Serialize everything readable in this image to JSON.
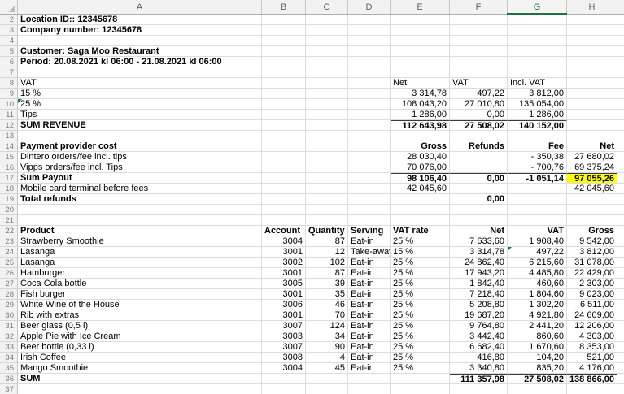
{
  "grid": {
    "column_headers": [
      "A",
      "B",
      "C",
      "D",
      "E",
      "F",
      "G",
      "H"
    ],
    "column_widths": {
      "A": 300,
      "B": 54,
      "C": 52,
      "D": 52,
      "E": 73,
      "F": 71,
      "G": 73,
      "H": 62
    },
    "selected_column": "G",
    "accent_green": "#1e7145",
    "highlight_yellow": "#ffff00",
    "rows": [
      {
        "n": 2,
        "cells": [
          {
            "c": "A",
            "t": "Location ID:: 12345678",
            "b": 1
          }
        ]
      },
      {
        "n": 3,
        "cells": [
          {
            "c": "A",
            "t": "Company number: 12345678",
            "b": 1
          }
        ]
      },
      {
        "n": 4,
        "cells": []
      },
      {
        "n": 5,
        "cells": [
          {
            "c": "A",
            "t": "Customer: Saga Moo Restaurant",
            "b": 1
          }
        ]
      },
      {
        "n": 6,
        "cells": [
          {
            "c": "A",
            "t": "Period: 20.08.2021 kl 06:00 - 21.08.2021 kl 06:00",
            "b": 1
          }
        ]
      },
      {
        "n": 7,
        "cells": []
      },
      {
        "n": 8,
        "cells": [
          {
            "c": "A",
            "t": "VAT"
          },
          {
            "c": "E",
            "t": "Net"
          },
          {
            "c": "F",
            "t": "VAT"
          },
          {
            "c": "G",
            "t": "Incl. VAT"
          }
        ]
      },
      {
        "n": 9,
        "cells": [
          {
            "c": "A",
            "t": "15 %"
          },
          {
            "c": "E",
            "t": "3 314,78",
            "r": 1
          },
          {
            "c": "F",
            "t": "497,22",
            "r": 1
          },
          {
            "c": "G",
            "t": "3 812,00",
            "r": 1
          }
        ]
      },
      {
        "n": 10,
        "cells": [
          {
            "c": "A",
            "t": "25 %",
            "flag": 1
          },
          {
            "c": "E",
            "t": "108 043,20",
            "r": 1
          },
          {
            "c": "F",
            "t": "27 010,80",
            "r": 1
          },
          {
            "c": "G",
            "t": "135 054,00",
            "r": 1
          }
        ]
      },
      {
        "n": 11,
        "cells": [
          {
            "c": "A",
            "t": "Tips"
          },
          {
            "c": "E",
            "t": "1 286,00",
            "r": 1
          },
          {
            "c": "F",
            "t": "0,00",
            "r": 1
          },
          {
            "c": "G",
            "t": "1 286,00",
            "r": 1
          }
        ]
      },
      {
        "n": 12,
        "cells": [
          {
            "c": "A",
            "t": "SUM REVENUE",
            "b": 1
          },
          {
            "c": "E",
            "t": "112 643,98",
            "r": 1,
            "b": 1,
            "bt": 1
          },
          {
            "c": "F",
            "t": "27 508,02",
            "r": 1,
            "b": 1,
            "bt": 1
          },
          {
            "c": "G",
            "t": "140 152,00",
            "r": 1,
            "b": 1,
            "bt": 1
          }
        ]
      },
      {
        "n": 13,
        "cells": []
      },
      {
        "n": 14,
        "cells": [
          {
            "c": "A",
            "t": "Payment provider cost",
            "b": 1
          },
          {
            "c": "E",
            "t": "Gross",
            "r": 1,
            "b": 1
          },
          {
            "c": "F",
            "t": "Refunds",
            "r": 1,
            "b": 1
          },
          {
            "c": "G",
            "t": "Fee",
            "r": 1,
            "b": 1
          },
          {
            "c": "H",
            "t": "Net",
            "r": 1,
            "b": 1
          }
        ]
      },
      {
        "n": 15,
        "cells": [
          {
            "c": "A",
            "t": "Dintero orders/fee incl. tips"
          },
          {
            "c": "E",
            "t": "28 030,40",
            "r": 1
          },
          {
            "c": "G",
            "t": "- 350,38",
            "r": 1
          },
          {
            "c": "H",
            "t": "27 680,02",
            "r": 1
          }
        ]
      },
      {
        "n": 16,
        "cells": [
          {
            "c": "A",
            "t": "Vipps orders/fee incl. Tips"
          },
          {
            "c": "E",
            "t": "70 076,00",
            "r": 1
          },
          {
            "c": "G",
            "t": "- 700,76",
            "r": 1
          },
          {
            "c": "H",
            "t": "69 375,24",
            "r": 1
          }
        ]
      },
      {
        "n": 17,
        "cells": [
          {
            "c": "A",
            "t": "Sum Payout",
            "b": 1
          },
          {
            "c": "E",
            "t": "98 106,40",
            "r": 1,
            "b": 1,
            "bt": 1
          },
          {
            "c": "F",
            "t": "0,00",
            "r": 1,
            "b": 1,
            "bt": 1
          },
          {
            "c": "G",
            "t": "-1 051,14",
            "r": 1,
            "b": 1,
            "bt": 1
          },
          {
            "c": "H",
            "t": "97 055,26",
            "r": 1,
            "b": 1,
            "bt": 1,
            "hl": 1
          }
        ]
      },
      {
        "n": 18,
        "cells": [
          {
            "c": "A",
            "t": "Mobile card terminal before fees"
          },
          {
            "c": "E",
            "t": "42 045,60",
            "r": 1
          },
          {
            "c": "H",
            "t": "42 045,60",
            "r": 1
          }
        ]
      },
      {
        "n": 19,
        "cells": [
          {
            "c": "A",
            "t": "Total refunds",
            "b": 1
          },
          {
            "c": "F",
            "t": "0,00",
            "r": 1,
            "b": 1
          }
        ]
      },
      {
        "n": 20,
        "cells": []
      },
      {
        "n": 21,
        "cells": []
      },
      {
        "n": 22,
        "cells": [
          {
            "c": "A",
            "t": "Product",
            "b": 1
          },
          {
            "c": "B",
            "t": "Account",
            "b": 1
          },
          {
            "c": "C",
            "t": "Quantity",
            "b": 1
          },
          {
            "c": "D",
            "t": "Serving",
            "b": 1
          },
          {
            "c": "E",
            "t": "VAT rate",
            "b": 1
          },
          {
            "c": "F",
            "t": "Net",
            "r": 1,
            "b": 1
          },
          {
            "c": "G",
            "t": "VAT",
            "r": 1,
            "b": 1
          },
          {
            "c": "H",
            "t": "Gross",
            "r": 1,
            "b": 1
          }
        ]
      },
      {
        "n": 23,
        "cells": [
          {
            "c": "A",
            "t": "Strawberry Smoothie"
          },
          {
            "c": "B",
            "t": "3004",
            "r": 1
          },
          {
            "c": "C",
            "t": "87",
            "r": 1
          },
          {
            "c": "D",
            "t": "Eat-in"
          },
          {
            "c": "E",
            "t": "25 %"
          },
          {
            "c": "F",
            "t": "7 633,60",
            "r": 1
          },
          {
            "c": "G",
            "t": "1 908,40",
            "r": 1
          },
          {
            "c": "H",
            "t": "9 542,00",
            "r": 1
          }
        ]
      },
      {
        "n": 24,
        "cells": [
          {
            "c": "A",
            "t": "Lasanga"
          },
          {
            "c": "B",
            "t": "3001",
            "r": 1
          },
          {
            "c": "C",
            "t": "12",
            "r": 1
          },
          {
            "c": "D",
            "t": "Take-away"
          },
          {
            "c": "E",
            "t": "15 %"
          },
          {
            "c": "F",
            "t": "3 314,78",
            "r": 1
          },
          {
            "c": "G",
            "t": "497,22",
            "r": 1,
            "flag": 1
          },
          {
            "c": "H",
            "t": "3 812,00",
            "r": 1
          }
        ]
      },
      {
        "n": 25,
        "cells": [
          {
            "c": "A",
            "t": "Lasanga"
          },
          {
            "c": "B",
            "t": "3002",
            "r": 1
          },
          {
            "c": "C",
            "t": "102",
            "r": 1
          },
          {
            "c": "D",
            "t": "Eat-in"
          },
          {
            "c": "E",
            "t": "25 %"
          },
          {
            "c": "F",
            "t": "24 862,40",
            "r": 1
          },
          {
            "c": "G",
            "t": "6 215,60",
            "r": 1
          },
          {
            "c": "H",
            "t": "31 078,00",
            "r": 1
          }
        ]
      },
      {
        "n": 26,
        "cells": [
          {
            "c": "A",
            "t": "Hamburger"
          },
          {
            "c": "B",
            "t": "3001",
            "r": 1
          },
          {
            "c": "C",
            "t": "87",
            "r": 1
          },
          {
            "c": "D",
            "t": "Eat-in"
          },
          {
            "c": "E",
            "t": "25 %"
          },
          {
            "c": "F",
            "t": "17 943,20",
            "r": 1
          },
          {
            "c": "G",
            "t": "4 485,80",
            "r": 1
          },
          {
            "c": "H",
            "t": "22 429,00",
            "r": 1
          }
        ]
      },
      {
        "n": 27,
        "cells": [
          {
            "c": "A",
            "t": "Coca Cola bottle"
          },
          {
            "c": "B",
            "t": "3005",
            "r": 1
          },
          {
            "c": "C",
            "t": "39",
            "r": 1
          },
          {
            "c": "D",
            "t": "Eat-in"
          },
          {
            "c": "E",
            "t": "25 %"
          },
          {
            "c": "F",
            "t": "1 842,40",
            "r": 1
          },
          {
            "c": "G",
            "t": "460,60",
            "r": 1
          },
          {
            "c": "H",
            "t": "2 303,00",
            "r": 1
          }
        ]
      },
      {
        "n": 28,
        "cells": [
          {
            "c": "A",
            "t": "Fish burger"
          },
          {
            "c": "B",
            "t": "3001",
            "r": 1
          },
          {
            "c": "C",
            "t": "35",
            "r": 1
          },
          {
            "c": "D",
            "t": "Eat-in"
          },
          {
            "c": "E",
            "t": "25 %"
          },
          {
            "c": "F",
            "t": "7 218,40",
            "r": 1
          },
          {
            "c": "G",
            "t": "1 804,60",
            "r": 1
          },
          {
            "c": "H",
            "t": "9 023,00",
            "r": 1
          }
        ]
      },
      {
        "n": 29,
        "cells": [
          {
            "c": "A",
            "t": "White Wine of the House"
          },
          {
            "c": "B",
            "t": "3006",
            "r": 1
          },
          {
            "c": "C",
            "t": "46",
            "r": 1
          },
          {
            "c": "D",
            "t": "Eat-in"
          },
          {
            "c": "E",
            "t": "25 %"
          },
          {
            "c": "F",
            "t": "5 208,80",
            "r": 1
          },
          {
            "c": "G",
            "t": "1 302,20",
            "r": 1
          },
          {
            "c": "H",
            "t": "6 511,00",
            "r": 1
          }
        ]
      },
      {
        "n": 30,
        "cells": [
          {
            "c": "A",
            "t": "Rib with extras"
          },
          {
            "c": "B",
            "t": "3001",
            "r": 1
          },
          {
            "c": "C",
            "t": "70",
            "r": 1
          },
          {
            "c": "D",
            "t": "Eat-in"
          },
          {
            "c": "E",
            "t": "25 %"
          },
          {
            "c": "F",
            "t": "19 687,20",
            "r": 1
          },
          {
            "c": "G",
            "t": "4 921,80",
            "r": 1
          },
          {
            "c": "H",
            "t": "24 609,00",
            "r": 1
          }
        ]
      },
      {
        "n": 31,
        "cells": [
          {
            "c": "A",
            "t": "Beer glass (0,5 l)"
          },
          {
            "c": "B",
            "t": "3007",
            "r": 1
          },
          {
            "c": "C",
            "t": "124",
            "r": 1
          },
          {
            "c": "D",
            "t": "Eat-in"
          },
          {
            "c": "E",
            "t": "25 %"
          },
          {
            "c": "F",
            "t": "9 764,80",
            "r": 1
          },
          {
            "c": "G",
            "t": "2 441,20",
            "r": 1
          },
          {
            "c": "H",
            "t": "12 206,00",
            "r": 1
          }
        ]
      },
      {
        "n": 32,
        "cells": [
          {
            "c": "A",
            "t": "Apple Pie with Ice Cream"
          },
          {
            "c": "B",
            "t": "3003",
            "r": 1
          },
          {
            "c": "C",
            "t": "34",
            "r": 1
          },
          {
            "c": "D",
            "t": "Eat-in"
          },
          {
            "c": "E",
            "t": "25 %"
          },
          {
            "c": "F",
            "t": "3 442,40",
            "r": 1
          },
          {
            "c": "G",
            "t": "860,60",
            "r": 1
          },
          {
            "c": "H",
            "t": "4 303,00",
            "r": 1
          }
        ]
      },
      {
        "n": 33,
        "cells": [
          {
            "c": "A",
            "t": "Beer bottle (0,33 l)"
          },
          {
            "c": "B",
            "t": "3007",
            "r": 1
          },
          {
            "c": "C",
            "t": "90",
            "r": 1
          },
          {
            "c": "D",
            "t": "Eat-in"
          },
          {
            "c": "E",
            "t": "25 %"
          },
          {
            "c": "F",
            "t": "6 682,40",
            "r": 1
          },
          {
            "c": "G",
            "t": "1 670,60",
            "r": 1
          },
          {
            "c": "H",
            "t": "8 353,00",
            "r": 1
          }
        ]
      },
      {
        "n": 34,
        "cells": [
          {
            "c": "A",
            "t": "Irish Coffee"
          },
          {
            "c": "B",
            "t": "3008",
            "r": 1
          },
          {
            "c": "C",
            "t": "4",
            "r": 1
          },
          {
            "c": "D",
            "t": "Eat-in"
          },
          {
            "c": "E",
            "t": "25 %"
          },
          {
            "c": "F",
            "t": "416,80",
            "r": 1
          },
          {
            "c": "G",
            "t": "104,20",
            "r": 1
          },
          {
            "c": "H",
            "t": "521,00",
            "r": 1
          }
        ]
      },
      {
        "n": 35,
        "cells": [
          {
            "c": "A",
            "t": "Mango Smoothie"
          },
          {
            "c": "B",
            "t": "3004",
            "r": 1
          },
          {
            "c": "C",
            "t": "45",
            "r": 1
          },
          {
            "c": "D",
            "t": "Eat-in"
          },
          {
            "c": "E",
            "t": "25 %"
          },
          {
            "c": "F",
            "t": "3 340,80",
            "r": 1
          },
          {
            "c": "G",
            "t": "835,20",
            "r": 1
          },
          {
            "c": "H",
            "t": "4 176,00",
            "r": 1
          }
        ]
      },
      {
        "n": 36,
        "cells": [
          {
            "c": "A",
            "t": "SUM",
            "b": 1
          },
          {
            "c": "F",
            "t": "111 357,98",
            "r": 1,
            "b": 1,
            "bt": 1
          },
          {
            "c": "G",
            "t": "27 508,02",
            "r": 1,
            "b": 1,
            "bt": 1
          },
          {
            "c": "H",
            "t": "138 866,00",
            "r": 1,
            "b": 1,
            "bt": 1
          }
        ]
      },
      {
        "n": 37,
        "cells": []
      }
    ]
  }
}
